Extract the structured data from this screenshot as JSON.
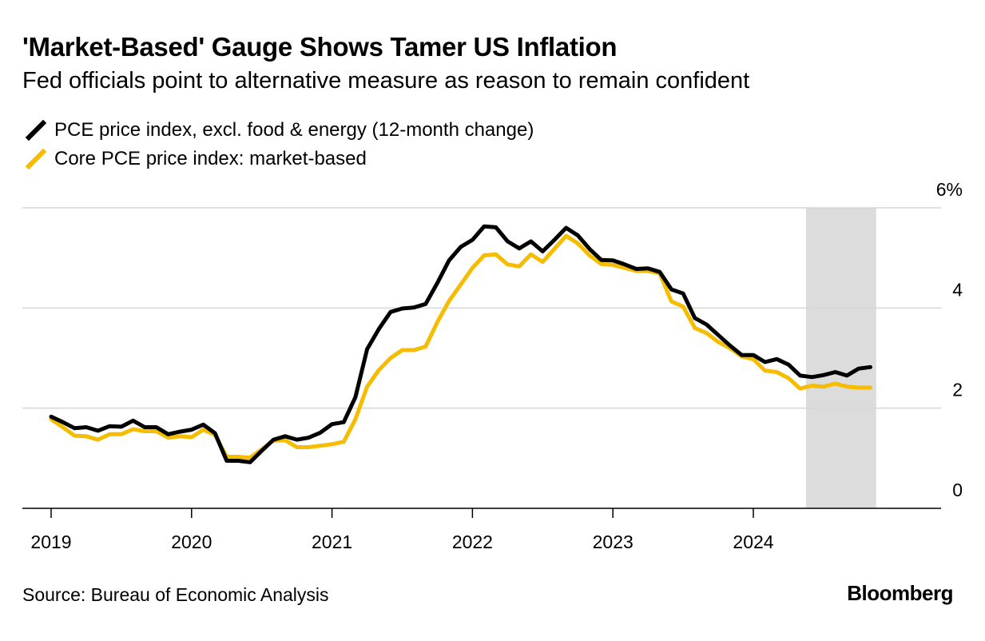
{
  "header": {
    "title": "'Market-Based' Gauge Shows Tamer US Inflation",
    "subtitle": "Fed officials point to alternative measure as reason to remain confident"
  },
  "footer": {
    "source": "Source: Bureau of Economic Analysis",
    "brand": "Bloomberg"
  },
  "colors": {
    "series_core": "#000000",
    "series_market": "#f5bc00",
    "highlight": "#dcdcdc",
    "grid": "#d6d6d6"
  },
  "chart_data": {
    "type": "line",
    "title": "'Market-Based' Gauge Shows Tamer US Inflation",
    "subtitle": "Fed officials point to alternative measure as reason to remain confident",
    "xlabel": "",
    "ylabel": "",
    "x_start": "2019-01",
    "x_ticks": [
      2019,
      2020,
      2021,
      2022,
      2023,
      2024
    ],
    "x_tick_labels": [
      "2019",
      "2020",
      "2021",
      "2022",
      "2023",
      "2024"
    ],
    "y_ticks": [
      0,
      2,
      4,
      6
    ],
    "y_tick_labels": [
      "0",
      "2",
      "4",
      "6%"
    ],
    "ylim": [
      0,
      6
    ],
    "grid": true,
    "legend_position": "top-left",
    "shaded_region": {
      "start": "2024-06",
      "end": "2024-11"
    },
    "series": [
      {
        "name": "PCE price index, excl. food & energy (12-month change)",
        "color": "#000000",
        "values": [
          1.83,
          1.72,
          1.6,
          1.62,
          1.55,
          1.64,
          1.63,
          1.75,
          1.62,
          1.62,
          1.48,
          1.53,
          1.57,
          1.67,
          1.5,
          0.95,
          0.95,
          0.92,
          1.15,
          1.37,
          1.44,
          1.37,
          1.41,
          1.51,
          1.68,
          1.72,
          2.22,
          3.18,
          3.58,
          3.92,
          3.99,
          4.01,
          4.08,
          4.5,
          4.95,
          5.22,
          5.36,
          5.63,
          5.61,
          5.33,
          5.19,
          5.33,
          5.13,
          5.36,
          5.6,
          5.45,
          5.18,
          4.96,
          4.95,
          4.87,
          4.78,
          4.79,
          4.72,
          4.37,
          4.29,
          3.8,
          3.67,
          3.46,
          3.25,
          3.06,
          3.06,
          2.92,
          2.98,
          2.87,
          2.65,
          2.62,
          2.66,
          2.72,
          2.65,
          2.79,
          2.82
        ]
      },
      {
        "name": "Core PCE price index: market-based",
        "color": "#f5bc00",
        "values": [
          1.78,
          1.62,
          1.45,
          1.44,
          1.37,
          1.48,
          1.48,
          1.58,
          1.54,
          1.54,
          1.41,
          1.44,
          1.42,
          1.57,
          1.47,
          1.03,
          1.03,
          1.01,
          1.18,
          1.35,
          1.36,
          1.22,
          1.22,
          1.25,
          1.28,
          1.33,
          1.78,
          2.43,
          2.76,
          3.0,
          3.16,
          3.16,
          3.23,
          3.72,
          4.14,
          4.47,
          4.8,
          5.05,
          5.07,
          4.87,
          4.83,
          5.07,
          4.92,
          5.18,
          5.44,
          5.29,
          5.05,
          4.88,
          4.86,
          4.8,
          4.74,
          4.74,
          4.69,
          4.13,
          4.03,
          3.6,
          3.5,
          3.32,
          3.2,
          3.03,
          2.98,
          2.75,
          2.72,
          2.6,
          2.39,
          2.45,
          2.43,
          2.49,
          2.43,
          2.41,
          2.41
        ]
      }
    ]
  }
}
